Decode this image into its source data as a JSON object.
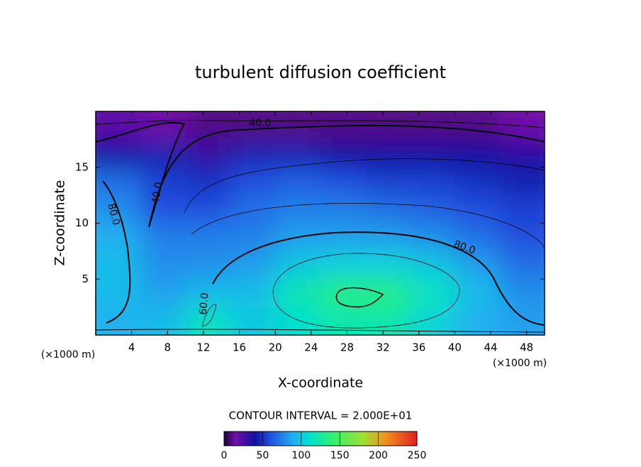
{
  "chart_data": {
    "type": "heatmap",
    "title": "turbulent diffusion coefficient",
    "x_label": "X-coordinate",
    "y_label": "Z-coordinate",
    "x_unit_label": "(×1000 m)",
    "y_unit_label": "(×1000 m)",
    "xlim": [
      0,
      50
    ],
    "ylim": [
      0,
      20
    ],
    "xticks": [
      4,
      8,
      12,
      16,
      20,
      24,
      28,
      32,
      36,
      40,
      44,
      48
    ],
    "yticks": [
      5,
      10,
      15
    ],
    "x_edges": [
      0,
      5,
      10,
      15,
      20,
      25,
      30,
      35,
      40,
      45,
      50
    ],
    "y_edges": [
      0,
      2.5,
      5,
      7.5,
      10,
      12.5,
      15,
      17.5,
      20
    ],
    "values": [
      [
        90,
        95,
        115,
        100,
        110,
        120,
        120,
        105,
        90,
        85
      ],
      [
        95,
        85,
        95,
        95,
        120,
        135,
        135,
        115,
        95,
        80
      ],
      [
        95,
        80,
        80,
        85,
        100,
        105,
        105,
        100,
        85,
        70
      ],
      [
        90,
        75,
        75,
        75,
        85,
        85,
        85,
        80,
        70,
        60
      ],
      [
        80,
        60,
        60,
        70,
        75,
        75,
        70,
        65,
        60,
        55
      ],
      [
        70,
        55,
        50,
        60,
        65,
        60,
        55,
        55,
        50,
        45
      ],
      [
        40,
        45,
        30,
        45,
        45,
        40,
        40,
        40,
        40,
        35
      ],
      [
        20,
        15,
        10,
        10,
        10,
        10,
        10,
        10,
        10,
        15
      ]
    ],
    "colormap": [
      {
        "value": 0,
        "color": "#200040"
      },
      {
        "value": 15,
        "color": "#7010a8"
      },
      {
        "value": 40,
        "color": "#1010a0"
      },
      {
        "value": 60,
        "color": "#2050e0"
      },
      {
        "value": 90,
        "color": "#20b0f0"
      },
      {
        "value": 110,
        "color": "#00e0d0"
      },
      {
        "value": 140,
        "color": "#30f070"
      },
      {
        "value": 180,
        "color": "#a0e030"
      },
      {
        "value": 210,
        "color": "#f09020"
      },
      {
        "value": 250,
        "color": "#e02020"
      }
    ],
    "clim": [
      0,
      250
    ],
    "cticks": [
      0,
      50,
      100,
      150,
      200,
      250
    ],
    "contour_interval_label": "CONTOUR INTERVAL = 2.000E+01",
    "contour_labels": [
      "40.0",
      "40.0",
      "80.0",
      "80.0",
      "60.0"
    ]
  }
}
